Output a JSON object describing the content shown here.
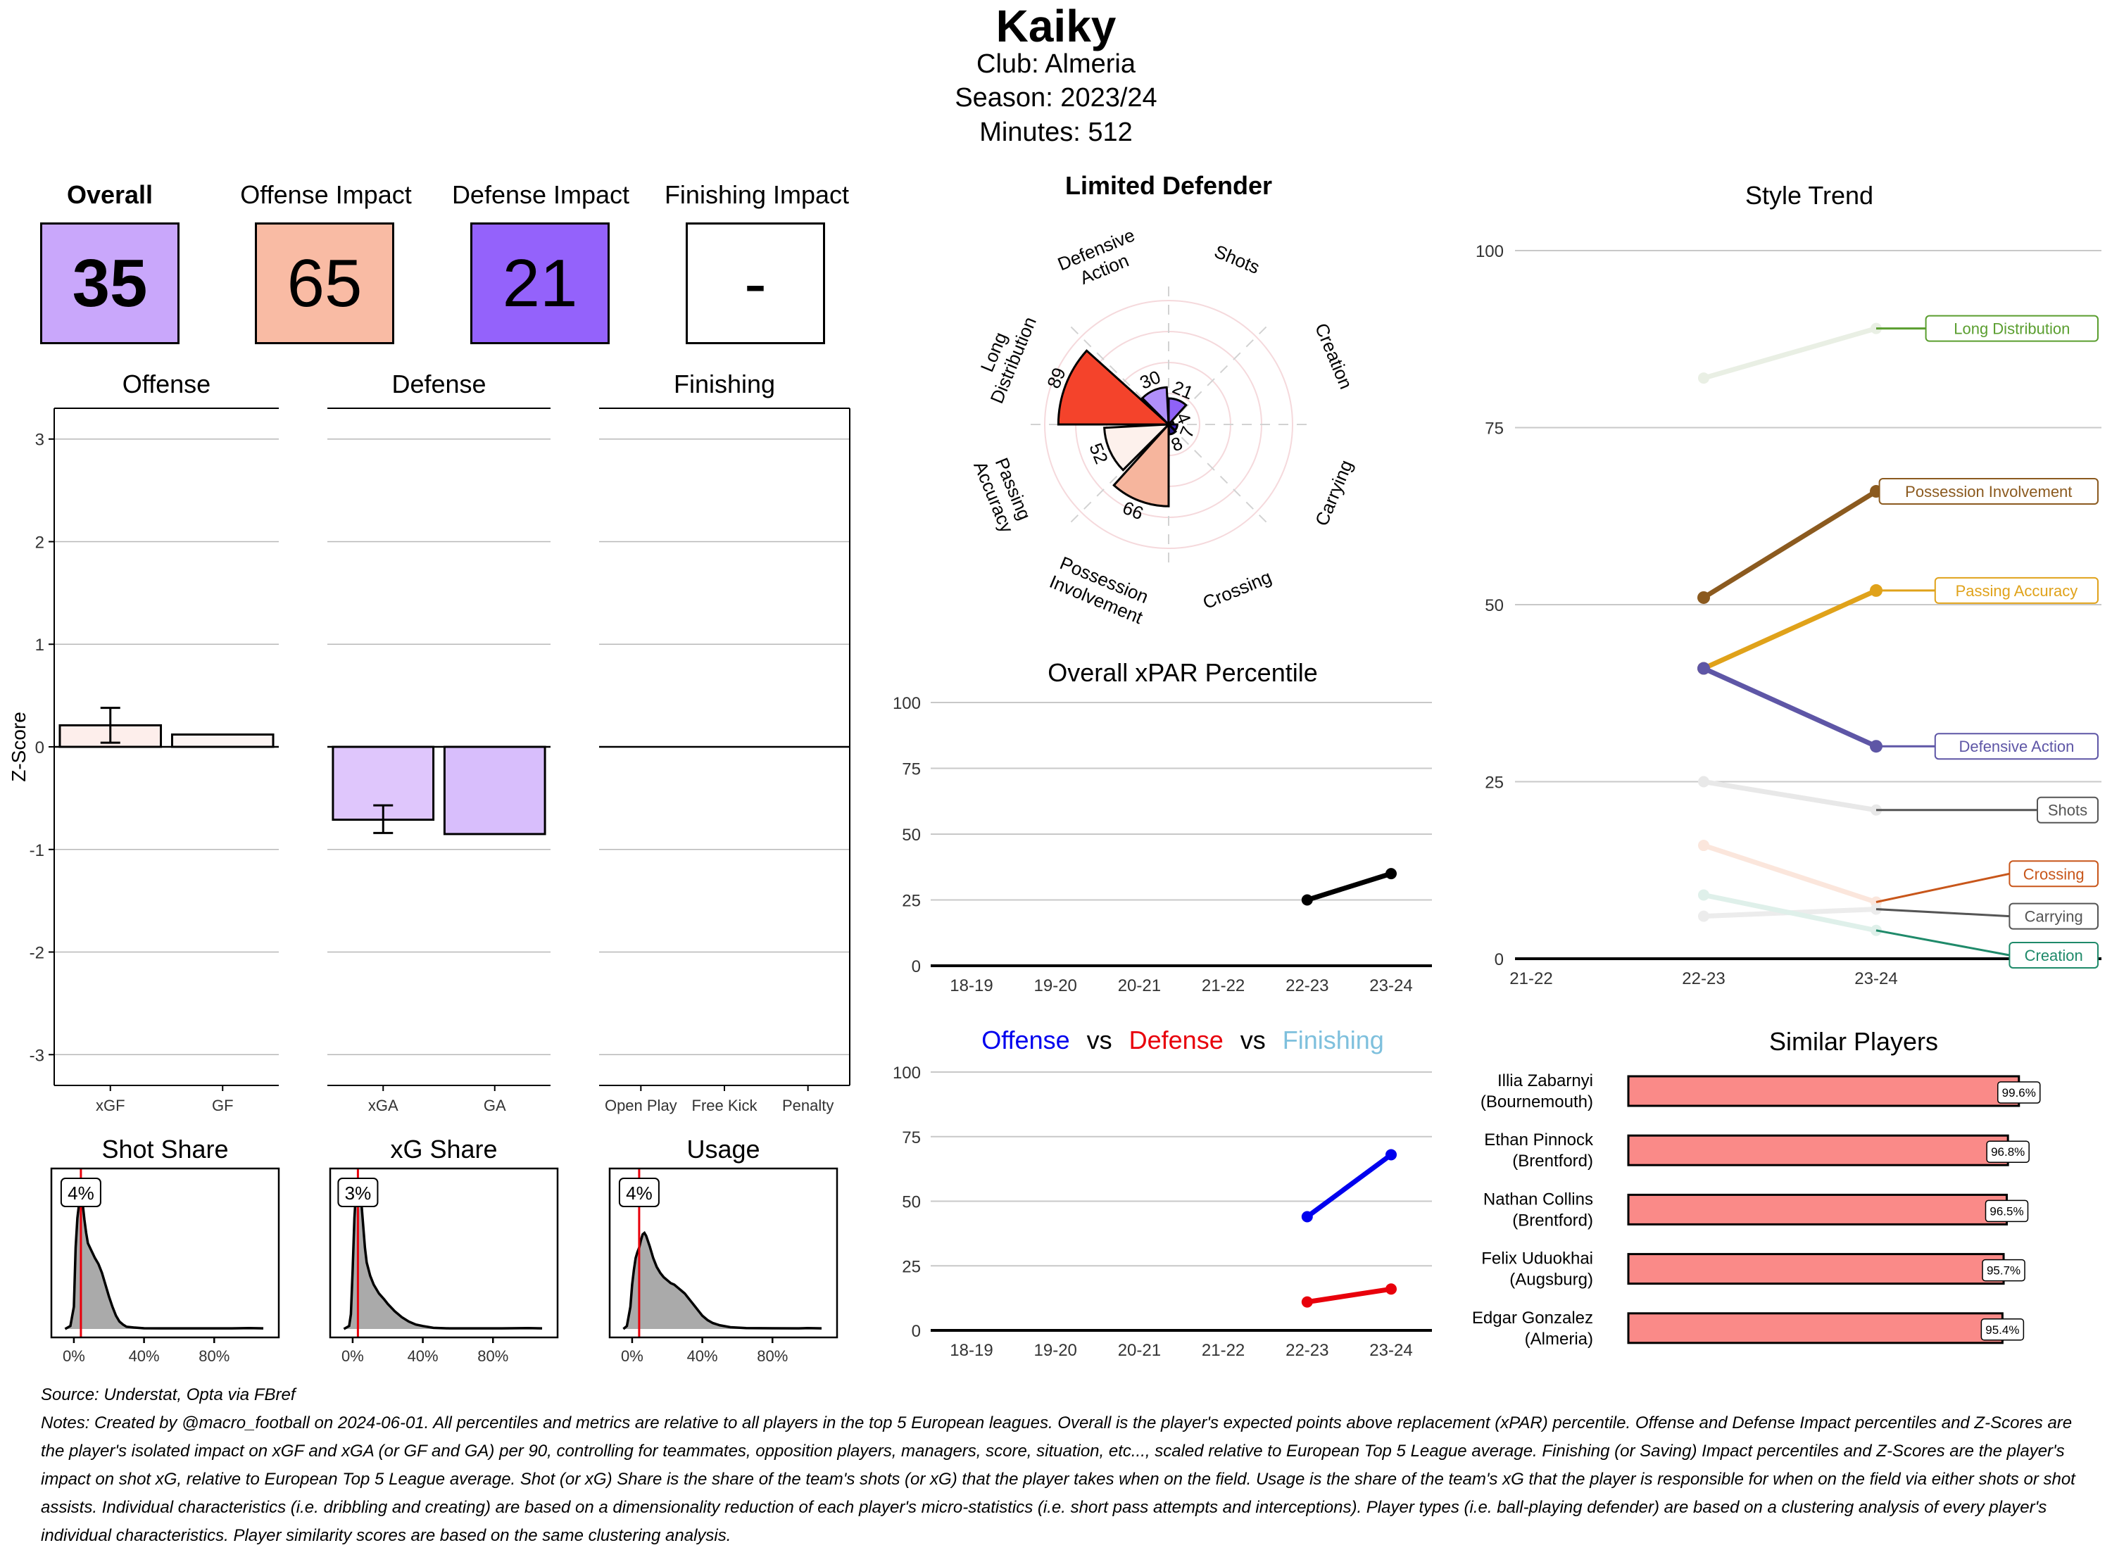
{
  "header": {
    "player": "Kaiky",
    "club_line": "Club:  Almeria",
    "season_line": "Season:  2023/24",
    "minutes_line": "Minutes:  512"
  },
  "cards": [
    {
      "label": "Overall",
      "value": "35",
      "color": "#c9a7fb"
    },
    {
      "label": "Offense Impact",
      "value": "65",
      "color": "#f9bba4"
    },
    {
      "label": "Defense Impact",
      "value": "21",
      "color": "#9462fb"
    },
    {
      "label": "Finishing Impact",
      "value": "-",
      "color": "#ffffff"
    }
  ],
  "colors": {
    "red_line": "#e8000b",
    "density_fill": "#aaaaaa",
    "grid": "#c8c8c8",
    "offense_blue": "#0000ee",
    "defense_red": "#e8000b",
    "finishing_lightblue": "#7ec0dd",
    "similar_bar": "#fa8a88"
  },
  "chart_data": [
    {
      "id": "zscore-offense",
      "type": "bar",
      "title": "Offense",
      "ylabel": "Z-Score",
      "ylim": [
        -3.3,
        3.3
      ],
      "yticks": [
        "3",
        "2",
        "1",
        "0",
        "-1",
        "-2",
        "-3"
      ],
      "ytick_values": [
        3,
        2,
        1,
        0,
        -1,
        -2,
        -3
      ],
      "categories": [
        "xGF",
        "GF"
      ],
      "values": [
        0.21,
        0.12
      ],
      "error_bars": [
        [
          0.04,
          0.38
        ],
        null
      ],
      "fills": [
        "#fdeeeb",
        "#fdf5f3"
      ]
    },
    {
      "id": "zscore-defense",
      "type": "bar",
      "title": "Defense",
      "ylim": [
        -3.3,
        3.3
      ],
      "categories": [
        "xGA",
        "GA"
      ],
      "values": [
        -0.71,
        -0.85
      ],
      "error_bars": [
        [
          -0.84,
          -0.57
        ],
        null
      ],
      "fills": [
        "#dfc6fc",
        "#d8befc"
      ]
    },
    {
      "id": "zscore-finishing",
      "type": "bar",
      "title": "Finishing",
      "ylim": [
        -3.3,
        3.3
      ],
      "categories": [
        "Open Play",
        "Free Kick",
        "Penalty"
      ],
      "values": [
        0,
        0,
        0
      ]
    },
    {
      "id": "density-shot-share",
      "type": "area",
      "title": "Shot Share",
      "marker_value": 4,
      "marker_label": "4%",
      "xticks": [
        "0%",
        "40%",
        "80%"
      ],
      "xtick_values": [
        0,
        40,
        80
      ],
      "xlim": [
        -8,
        112
      ],
      "x": [
        -5,
        -2,
        0,
        1,
        2,
        3,
        4,
        5,
        6,
        7,
        8,
        10,
        12,
        14,
        16,
        18,
        20,
        22,
        24,
        26,
        28,
        30,
        34,
        40,
        50,
        60,
        70,
        80,
        90,
        100,
        108
      ],
      "y": [
        0.0,
        0.02,
        0.15,
        0.55,
        0.75,
        0.85,
        0.9,
        0.85,
        0.74,
        0.65,
        0.58,
        0.53,
        0.48,
        0.44,
        0.38,
        0.3,
        0.22,
        0.15,
        0.09,
        0.05,
        0.03,
        0.015,
        0.01,
        0.005,
        0.004,
        0.004,
        0.004,
        0.004,
        0.004,
        0.006,
        0.004
      ]
    },
    {
      "id": "density-xg-share",
      "type": "area",
      "title": "xG Share",
      "marker_value": 3,
      "marker_label": "3%",
      "xticks": [
        "0%",
        "40%",
        "80%"
      ],
      "xtick_values": [
        0,
        40,
        80
      ],
      "xlim": [
        -8,
        112
      ],
      "x": [
        -5,
        -2,
        -1,
        0,
        1,
        2,
        3,
        4,
        5,
        6,
        7,
        8,
        10,
        12,
        15,
        18,
        20,
        24,
        28,
        32,
        36,
        40,
        46,
        55,
        70,
        85,
        100,
        108
      ],
      "y": [
        0.0,
        0.02,
        0.1,
        0.4,
        0.75,
        0.95,
        1.0,
        0.97,
        0.85,
        0.7,
        0.55,
        0.45,
        0.36,
        0.3,
        0.24,
        0.2,
        0.17,
        0.12,
        0.08,
        0.05,
        0.03,
        0.02,
        0.008,
        0.004,
        0.004,
        0.004,
        0.006,
        0.004
      ]
    },
    {
      "id": "density-usage",
      "type": "area",
      "title": "Usage",
      "marker_value": 4,
      "marker_label": "4%",
      "xticks": [
        "0%",
        "40%",
        "80%"
      ],
      "xtick_values": [
        0,
        40,
        80
      ],
      "xlim": [
        -8,
        112
      ],
      "x": [
        -5,
        -3,
        -1,
        0,
        1,
        2,
        3,
        4,
        5,
        6,
        7,
        8,
        10,
        12,
        14,
        16,
        18,
        20,
        22,
        24,
        26,
        28,
        30,
        32,
        34,
        36,
        38,
        40,
        43,
        46,
        50,
        56,
        65,
        80,
        95,
        100,
        108
      ],
      "y": [
        0.0,
        0.02,
        0.15,
        0.3,
        0.4,
        0.48,
        0.52,
        0.55,
        0.6,
        0.64,
        0.65,
        0.63,
        0.56,
        0.48,
        0.42,
        0.38,
        0.35,
        0.33,
        0.31,
        0.3,
        0.28,
        0.26,
        0.24,
        0.21,
        0.18,
        0.15,
        0.12,
        0.09,
        0.06,
        0.04,
        0.025,
        0.012,
        0.006,
        0.005,
        0.004,
        0.006,
        0.004
      ]
    },
    {
      "id": "radar-style",
      "type": "bar",
      "subtype": "polar",
      "title": "Limited Defender",
      "rlim": [
        0,
        100
      ],
      "categories": [
        "Defensive Action",
        "Shots",
        "Creation",
        "Carrying",
        "Crossing",
        "Possession Involvement",
        "Passing Accuracy",
        "Long Distribution"
      ],
      "label_lines": [
        [
          "Defensive",
          "Action"
        ],
        [
          "Shots"
        ],
        [
          "Creation"
        ],
        [
          "Carrying"
        ],
        [
          "Crossing"
        ],
        [
          "Possession",
          "Involvement"
        ],
        [
          "Passing",
          "Accuracy"
        ],
        [
          "Long",
          "Distribution"
        ]
      ],
      "values": [
        30,
        21,
        4,
        7,
        8,
        66,
        52,
        89
      ],
      "value_labels": [
        "30",
        "21",
        "4",
        "7",
        "8",
        "66",
        "52",
        "89"
      ],
      "fills": [
        "#b08ff9",
        "#8f62f7",
        "#6b3ef0",
        "#3a22b8",
        "#2a1a8c",
        "#f6b59d",
        "#fdf1ec",
        "#f4432b"
      ]
    },
    {
      "id": "xpar-overall",
      "type": "line",
      "title": "Overall xPAR Percentile",
      "categories": [
        "18-19",
        "19-20",
        "20-21",
        "21-22",
        "22-23",
        "23-24"
      ],
      "ylim": [
        0,
        100
      ],
      "yticks": [
        "100",
        "75",
        "50",
        "25",
        "0"
      ],
      "ytick_values": [
        100,
        75,
        50,
        25,
        0
      ],
      "series": [
        {
          "name": "Overall",
          "color": "#000000",
          "values": [
            null,
            null,
            null,
            null,
            25,
            35
          ]
        }
      ]
    },
    {
      "id": "xpar-components",
      "type": "line",
      "title_parts": [
        "Offense",
        "vs",
        "Defense",
        "vs",
        "Finishing"
      ],
      "categories": [
        "18-19",
        "19-20",
        "20-21",
        "21-22",
        "22-23",
        "23-24"
      ],
      "ylim": [
        0,
        100
      ],
      "yticks": [
        "100",
        "75",
        "50",
        "25",
        "0"
      ],
      "ytick_values": [
        100,
        75,
        50,
        25,
        0
      ],
      "series": [
        {
          "name": "Offense",
          "color": "#0000ee",
          "values": [
            null,
            null,
            null,
            null,
            44,
            68
          ]
        },
        {
          "name": "Defense",
          "color": "#e8000b",
          "values": [
            null,
            null,
            null,
            null,
            11,
            16
          ]
        },
        {
          "name": "Finishing",
          "color": "#7ec0dd",
          "values": [
            null,
            null,
            null,
            null,
            null,
            null
          ]
        }
      ]
    },
    {
      "id": "style-trend",
      "type": "line",
      "title": "Style Trend",
      "categories": [
        "21-22",
        "22-23",
        "23-24"
      ],
      "ylim": [
        0,
        100
      ],
      "yticks": [
        "100",
        "75",
        "50",
        "25",
        "0"
      ],
      "ytick_values": [
        100,
        75,
        50,
        25,
        0
      ],
      "series": [
        {
          "name": "Long Distribution",
          "color": "#5a9e2f",
          "values": [
            null,
            82,
            89
          ],
          "emphasis": false,
          "label_value": 89
        },
        {
          "name": "Possession Involvement",
          "color": "#8b5a1f",
          "values": [
            null,
            51,
            66
          ],
          "emphasis": true,
          "label_value": 66
        },
        {
          "name": "Passing Accuracy",
          "color": "#e0a21a",
          "values": [
            null,
            41,
            52
          ],
          "emphasis": true,
          "label_value": 52
        },
        {
          "name": "Defensive Action",
          "color": "#5e56a6",
          "values": [
            null,
            41,
            30
          ],
          "emphasis": true,
          "label_value": 30
        },
        {
          "name": "Shots",
          "color": "#555555",
          "values": [
            null,
            25,
            21
          ],
          "emphasis": false,
          "label_value": 21
        },
        {
          "name": "Crossing",
          "color": "#c8561a",
          "values": [
            null,
            16,
            8
          ],
          "emphasis": false,
          "label_value": 12
        },
        {
          "name": "Carrying",
          "color": "#555555",
          "values": [
            null,
            6,
            7
          ],
          "emphasis": false,
          "label_value": 6
        },
        {
          "name": "Creation",
          "color": "#1f8a6a",
          "values": [
            null,
            9,
            4
          ],
          "emphasis": false,
          "label_value": 0.5
        }
      ]
    },
    {
      "id": "similar-players",
      "type": "bar",
      "orientation": "horizontal",
      "title": "Similar Players",
      "xlim": [
        0,
        100
      ],
      "categories": [
        [
          "Illia Zabarnyi",
          "(Bournemouth)"
        ],
        [
          "Ethan Pinnock",
          "(Brentford)"
        ],
        [
          "Nathan Collins",
          "(Brentford)"
        ],
        [
          "Felix Uduokhai",
          "(Augsburg)"
        ],
        [
          "Edgar Gonzalez",
          "(Almeria)"
        ]
      ],
      "values": [
        99.6,
        96.8,
        96.5,
        95.7,
        95.4
      ],
      "value_labels": [
        "99.6%",
        "96.8%",
        "96.5%",
        "95.7%",
        "95.4%"
      ]
    }
  ],
  "footer": {
    "source": "Source: Understat, Opta via FBref",
    "notes_lines": [
      "Notes: Created by @macro_football on 2024-06-01. All percentiles and metrics are relative to all players in the top 5 European leagues. Overall is the player's expected points above replacement (xPAR) percentile. Offense and Defense Impact percentiles and Z-Scores are",
      "the player's isolated impact on xGF and xGA (or GF and GA) per 90, controlling for teammates, opposition players, managers, score, situation, etc..., scaled relative to European Top 5 League average. Finishing (or Saving) Impact percentiles and Z-Scores are the player's",
      "impact on shot xG, relative to European Top 5 League average. Shot (or xG) Share is the share of the team's shots (or xG) that the player takes when on the field. Usage is the share of the team's xG that the player is responsible for when on the field via either shots or shot",
      "assists. Individual characteristics (i.e. dribbling and creating) are based on a dimensionality reduction of each player's micro-statistics (i.e. short pass attempts and interceptions). Player types (i.e. ball-playing defender) are based on a clustering analysis of every player's",
      "individual characteristics. Player similarity scores are based on the same clustering analysis."
    ]
  }
}
